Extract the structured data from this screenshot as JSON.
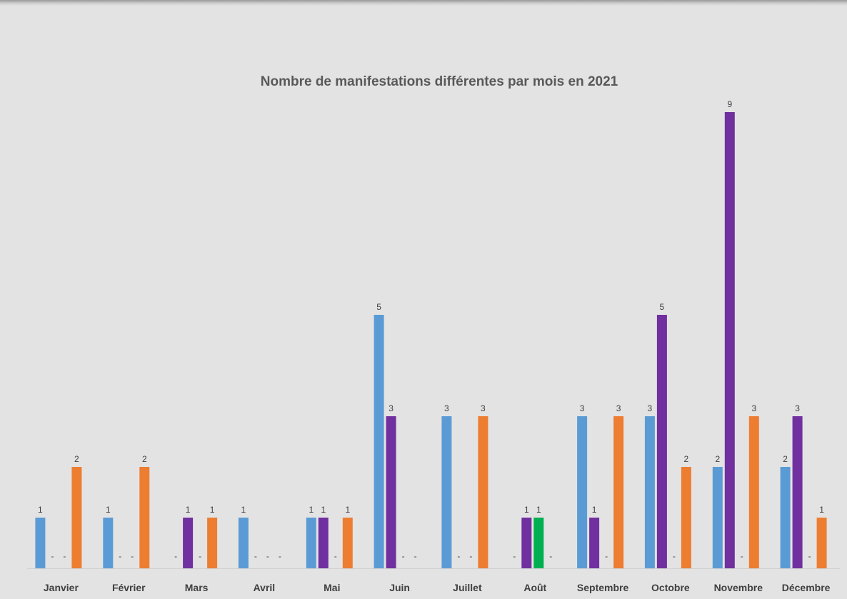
{
  "chart_data": {
    "type": "bar",
    "title": "Nombre de manifestations différentes par mois en 2021",
    "xlabel": "",
    "ylabel": "",
    "ylim": [
      0,
      9
    ],
    "grid": false,
    "legend": "none",
    "zero_label": "-",
    "categories": [
      "Janvier",
      "Février",
      "Mars",
      "Avril",
      "Mai",
      "Juin",
      "Juillet",
      "Août",
      "Septembre",
      "Octobre",
      "Novembre",
      "Décembre"
    ],
    "series": [
      {
        "color": "#5b9bd5",
        "values": [
          1,
          1,
          0,
          1,
          1,
          5,
          3,
          0,
          3,
          3,
          2,
          2
        ]
      },
      {
        "color": "#7030a0",
        "values": [
          0,
          0,
          1,
          0,
          1,
          3,
          0,
          1,
          1,
          5,
          9,
          3
        ]
      },
      {
        "color": "#00b050",
        "values": [
          0,
          0,
          0,
          0,
          0,
          0,
          0,
          1,
          0,
          0,
          0,
          0
        ]
      },
      {
        "color": "#ed7d31",
        "values": [
          2,
          2,
          1,
          0,
          1,
          0,
          3,
          0,
          3,
          2,
          3,
          1
        ]
      }
    ]
  }
}
